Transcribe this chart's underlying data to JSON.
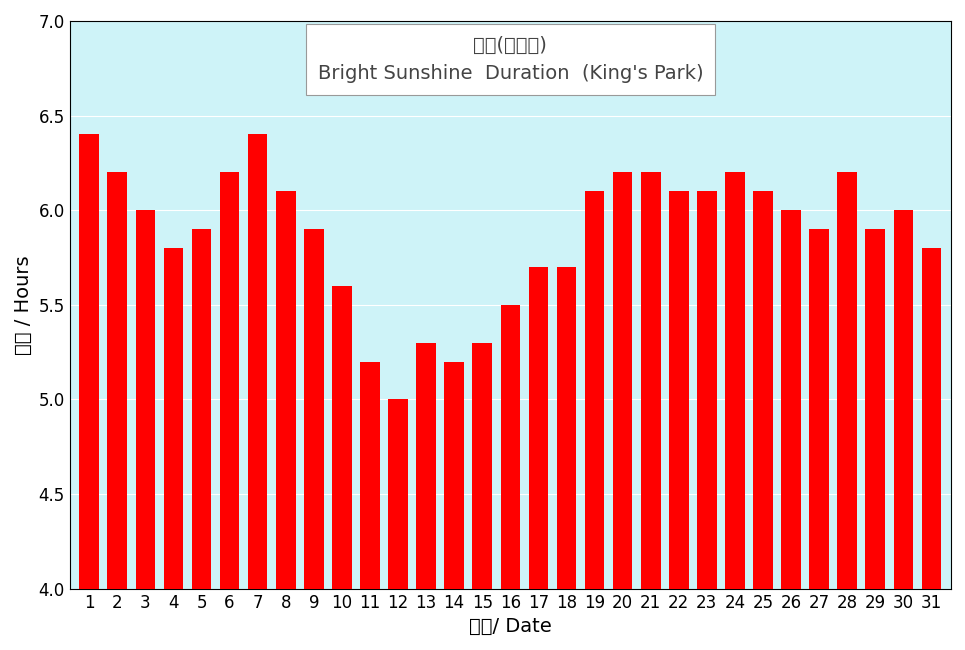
{
  "values": [
    6.4,
    6.2,
    6.0,
    5.8,
    5.9,
    6.2,
    6.4,
    6.1,
    5.9,
    5.6,
    5.2,
    5.0,
    5.3,
    5.2,
    5.3,
    5.5,
    5.7,
    5.7,
    6.1,
    6.2,
    6.2,
    6.1,
    6.1,
    6.2,
    6.1,
    6.0,
    5.9,
    6.2,
    5.9,
    6.0,
    5.8
  ],
  "days": [
    1,
    2,
    3,
    4,
    5,
    6,
    7,
    8,
    9,
    10,
    11,
    12,
    13,
    14,
    15,
    16,
    17,
    18,
    19,
    20,
    21,
    22,
    23,
    24,
    25,
    26,
    27,
    28,
    29,
    30,
    31
  ],
  "bar_color": "#ff0000",
  "bg_color": "#cef3f8",
  "fig_bg": "#ffffff",
  "ylabel": "小時 / Hours",
  "xlabel": "日期/ Date",
  "ylim_min": 4.0,
  "ylim_max": 7.0,
  "yticks": [
    4.0,
    4.5,
    5.0,
    5.5,
    6.0,
    6.5,
    7.0
  ],
  "legend_line1": "日照(京士柏)",
  "legend_line2": "Bright Sunshine  Duration  (King's Park)",
  "axis_label_fontsize": 14,
  "tick_fontsize": 12,
  "legend_fontsize_cn": 14,
  "legend_fontsize_en": 13
}
